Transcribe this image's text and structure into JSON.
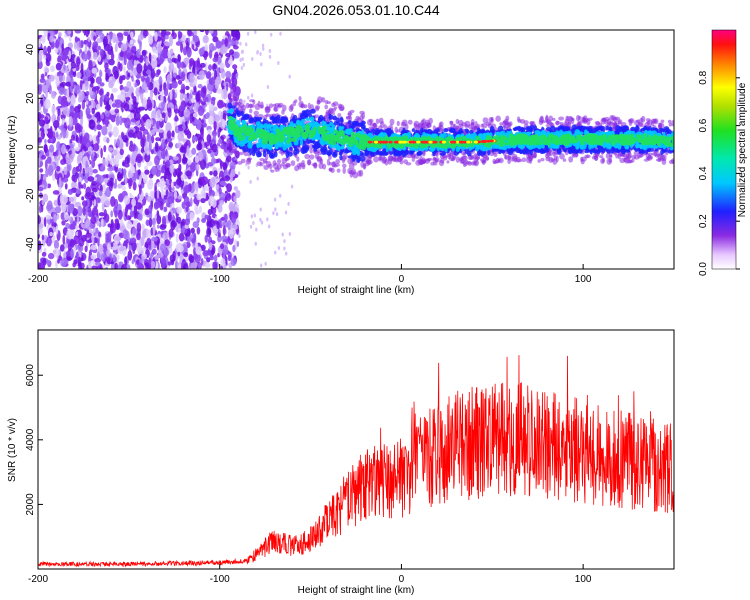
{
  "chart_data": [
    {
      "type": "heatmap",
      "title": "GN04.2026.053.01.10.C44",
      "xlabel": "Height of straight line (km)",
      "ylabel": "Frequency (Hz)",
      "xlim": [
        -200,
        150
      ],
      "ylim": [
        -50,
        48
      ],
      "xticks": [
        -200,
        -100,
        0,
        100
      ],
      "yticks": [
        -40,
        -20,
        0,
        20,
        40
      ],
      "ridge": {
        "description_points_x": [
          -95,
          -90,
          -80,
          -70,
          -60,
          -50,
          -40,
          -30,
          -20,
          -10,
          0,
          20,
          40,
          60,
          80,
          100,
          120,
          140,
          150
        ],
        "frequency_hz": [
          12,
          6,
          5,
          4,
          5,
          7,
          5,
          3,
          2,
          2,
          2,
          2,
          2,
          3,
          3,
          3,
          3,
          3,
          2
        ]
      },
      "colorbar": {
        "label": "Normalized spectral amplitude",
        "range": [
          0,
          1
        ],
        "ticks": [
          "0.0",
          "0.2",
          "0.4",
          "0.6",
          "0.8"
        ]
      }
    },
    {
      "type": "line",
      "xlabel": "Height of straight line (km)",
      "ylabel": "SNR (10 * v/v)",
      "xlim": [
        -200,
        150
      ],
      "ylim": [
        0,
        7400
      ],
      "xticks": [
        -200,
        -100,
        0,
        100
      ],
      "yticks": [
        2000,
        4000,
        6000
      ],
      "color": "#ff0000",
      "series": [
        {
          "name": "SNR",
          "x": [
            -200,
            -150,
            -100,
            -85,
            -80,
            -70,
            -60,
            -50,
            -40,
            -30,
            -20,
            -10,
            0,
            10,
            20,
            30,
            40,
            50,
            60,
            70,
            80,
            90,
            100,
            110,
            120,
            130,
            140,
            150
          ],
          "values": [
            150,
            150,
            200,
            250,
            450,
            900,
            700,
            900,
            1500,
            2100,
            2600,
            2700,
            2800,
            3300,
            3600,
            3800,
            3900,
            3950,
            4000,
            4000,
            3900,
            3800,
            3650,
            3500,
            3400,
            3300,
            3200,
            3100
          ]
        }
      ]
    }
  ]
}
